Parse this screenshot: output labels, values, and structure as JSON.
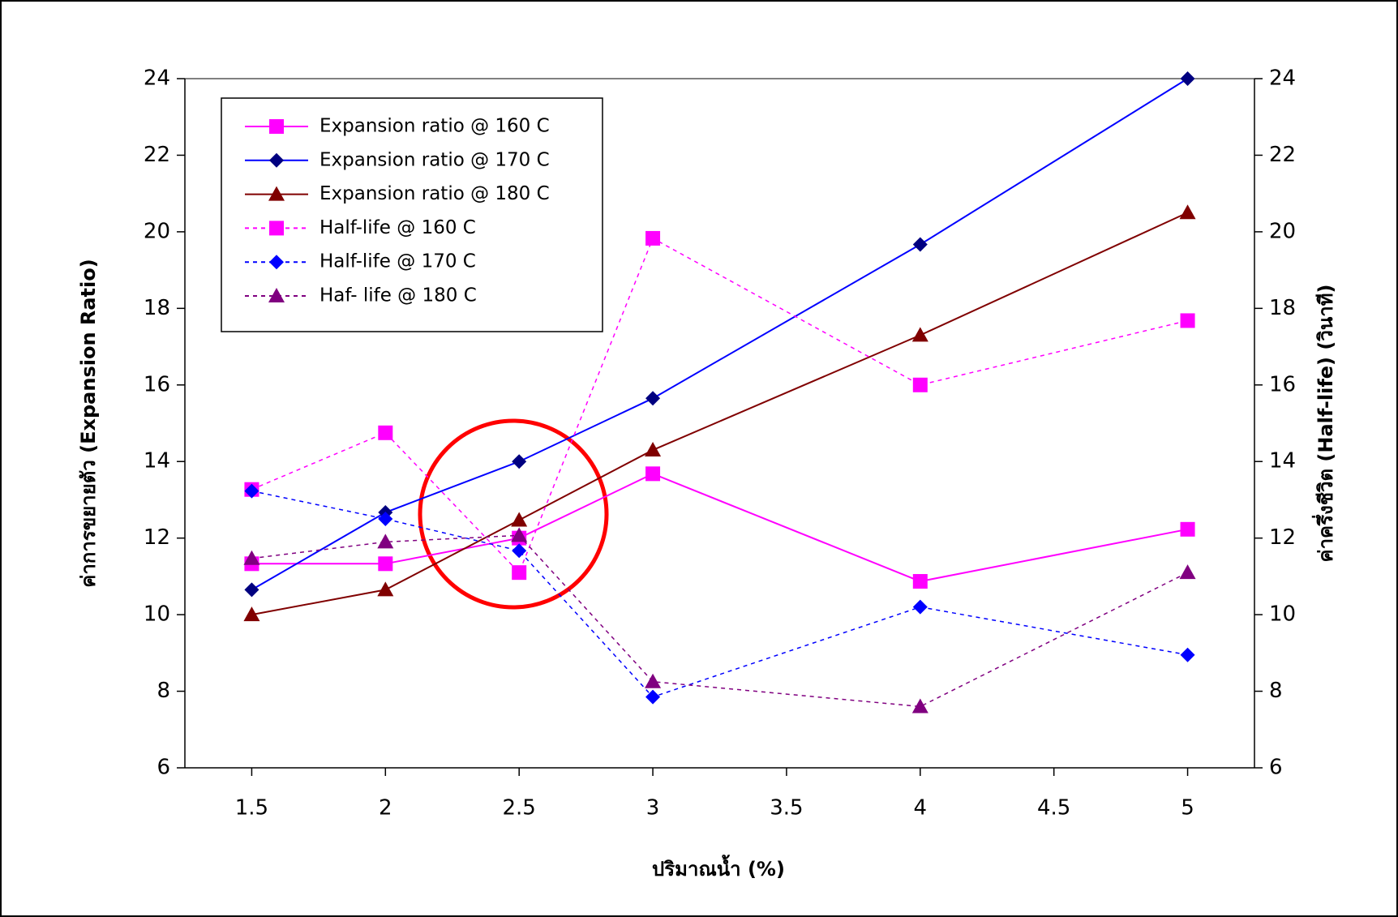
{
  "chart_data": {
    "type": "line",
    "x_label": "ปริมาณน้ำ (%)",
    "y_label": "ค่าการขยายตัว (Expansion Ratio)",
    "y2_label": "ค่าครึ่งชีวิต (Half-life) (วินาที)",
    "x": [
      1.5,
      2,
      2.5,
      3,
      4,
      5
    ],
    "xlim": [
      1.25,
      5.25
    ],
    "xticks": [
      1.5,
      2,
      2.5,
      3,
      3.5,
      4,
      4.5,
      5
    ],
    "ylim": [
      6,
      24
    ],
    "yticks": [
      6,
      8,
      10,
      12,
      14,
      16,
      18,
      20,
      22,
      24
    ],
    "y2lim": [
      6,
      24
    ],
    "y2ticks": [
      6,
      8,
      10,
      12,
      14,
      16,
      18,
      20,
      22,
      24
    ],
    "legend": "top-left",
    "series": [
      {
        "name": "Expansion ratio @ 160 C",
        "color": "#ff00ff",
        "marker": "square",
        "dash": false,
        "values": [
          11.33,
          11.33,
          12.0,
          13.68,
          10.87,
          12.23
        ]
      },
      {
        "name": "Expansion ratio @ 170 C",
        "color": "#0000ff",
        "marker_color": "#000080",
        "marker": "diamond",
        "dash": false,
        "values": [
          10.65,
          12.67,
          14.0,
          15.65,
          19.67,
          24.0
        ]
      },
      {
        "name": "Expansion ratio @ 180 C",
        "color": "#800000",
        "marker": "triangle",
        "dash": false,
        "values": [
          10.0,
          10.65,
          12.47,
          14.3,
          17.3,
          20.5
        ]
      },
      {
        "name": "Half-life @ 160 C",
        "color": "#ff00ff",
        "marker": "square",
        "dash": true,
        "axis": "y2",
        "values": [
          13.27,
          14.75,
          11.1,
          19.83,
          16.0,
          17.68
        ]
      },
      {
        "name": "Half-life @ 170 C",
        "color": "#0000ff",
        "marker": "diamond",
        "dash": true,
        "axis": "y2",
        "values": [
          13.23,
          12.5,
          11.67,
          7.85,
          10.2,
          8.95
        ]
      },
      {
        "name": "Haf- life @ 180 C",
        "color": "#800080",
        "marker": "triangle",
        "dash": true,
        "axis": "y2",
        "values": [
          11.47,
          11.9,
          12.07,
          8.25,
          7.6,
          11.1
        ]
      }
    ]
  }
}
